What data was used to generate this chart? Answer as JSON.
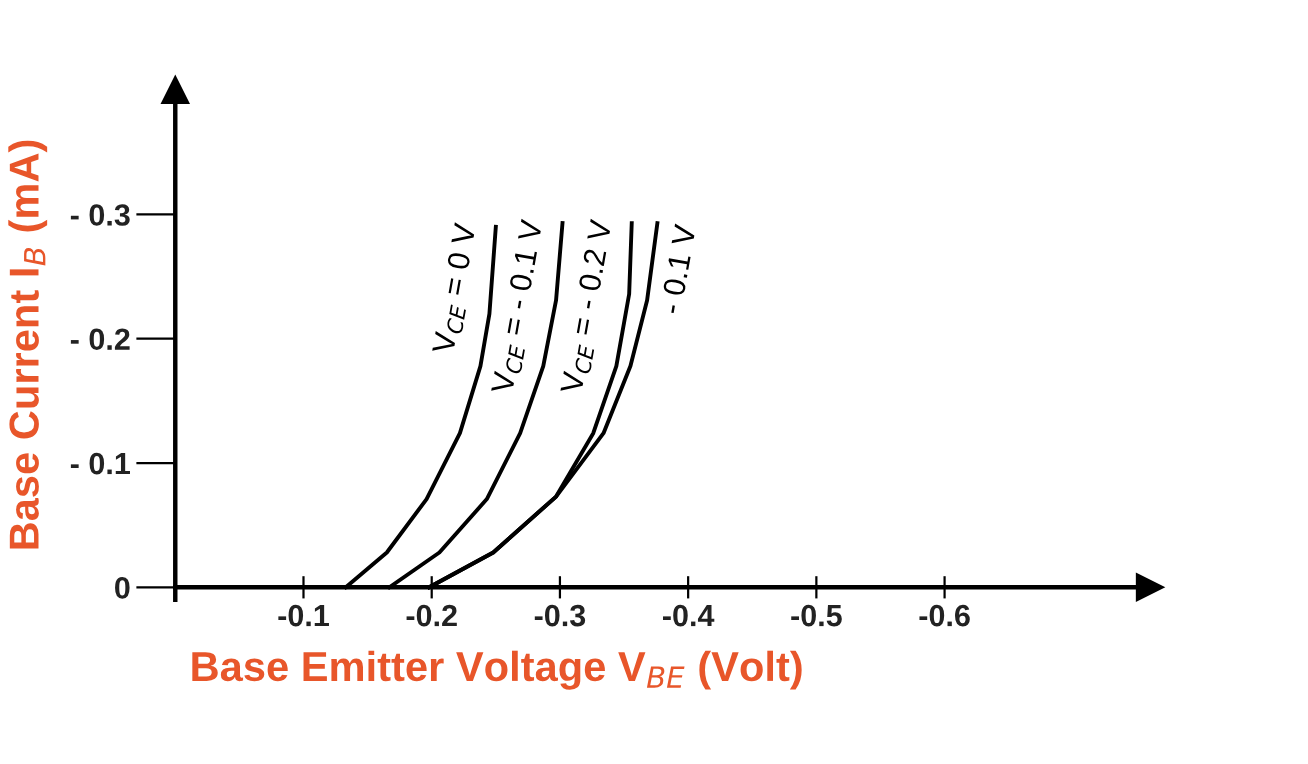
{
  "chart_data": {
    "type": "line",
    "xlabel": "Base Emitter Voltage V$_{BE}$ (Volt)",
    "ylabel": "Base Current I$_{B}$ (mA)",
    "xlim": [
      0,
      -0.76
    ],
    "ylim": [
      0.01,
      -0.4
    ],
    "xticks": [
      -0.1,
      -0.2,
      -0.3,
      -0.4,
      -0.5,
      -0.6
    ],
    "yticks": [
      {
        "value": 0,
        "label": "0"
      },
      {
        "value": -0.1,
        "label": "- 0.1"
      },
      {
        "value": -0.2,
        "label": "- 0.2"
      },
      {
        "value": -0.3,
        "label": "- 0.3"
      }
    ],
    "grid": false,
    "legend": false,
    "marker": "none",
    "line_style": "solid",
    "series": [
      {
        "name": "V$_{CE}$ = 0 V",
        "color": "#000000",
        "x": [
          -0.133,
          -0.165,
          -0.196,
          -0.222,
          -0.238,
          -0.245,
          -0.25
        ],
        "values": [
          0,
          -0.028,
          -0.071,
          -0.124,
          -0.178,
          -0.22,
          -0.29
        ]
      },
      {
        "name": "V$_{CE}$ = - 0.1 V",
        "color": "#000000",
        "x": [
          -0.167,
          -0.206,
          -0.243,
          -0.269,
          -0.287,
          -0.297,
          -0.302
        ],
        "values": [
          0,
          -0.028,
          -0.071,
          -0.124,
          -0.178,
          -0.231,
          -0.293
        ]
      },
      {
        "name": "V$_{CE}$ = - 0.2 V",
        "color": "#000000",
        "x": [
          -0.198,
          -0.248,
          -0.297,
          -0.326,
          -0.344,
          -0.354,
          -0.356
        ],
        "values": [
          0,
          -0.028,
          -0.073,
          -0.124,
          -0.178,
          -0.236,
          -0.293
        ]
      },
      {
        "name": "- 0.1 V",
        "color": "#000000",
        "x": [
          -0.198,
          -0.248,
          -0.297,
          -0.334,
          -0.355,
          -0.368,
          -0.376
        ],
        "values": [
          0,
          -0.028,
          -0.073,
          -0.124,
          -0.178,
          -0.231,
          -0.293
        ]
      }
    ]
  }
}
